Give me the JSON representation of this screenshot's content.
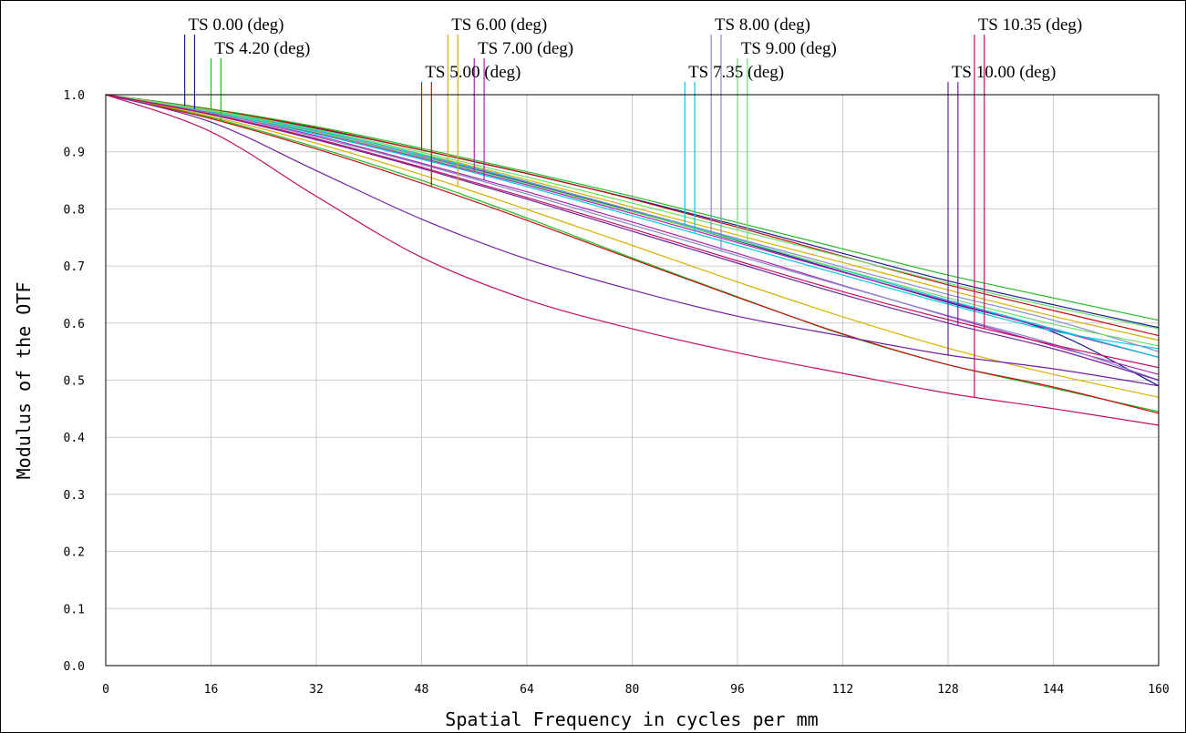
{
  "chart_data": {
    "type": "line",
    "title": "",
    "xlabel": "Spatial Frequency in cycles per mm",
    "ylabel": "Modulus of the OTF",
    "xlim": [
      0,
      160
    ],
    "ylim": [
      0,
      1
    ],
    "grid": true,
    "x_ticks": [
      "0",
      "16",
      "32",
      "48",
      "64",
      "80",
      "96",
      "112",
      "128",
      "144",
      "160"
    ],
    "y_ticks": [
      "0.0",
      "0.1",
      "0.2",
      "0.3",
      "0.4",
      "0.5",
      "0.6",
      "0.7",
      "0.8",
      "0.9",
      "1.0"
    ],
    "x": [
      0,
      16,
      32,
      48,
      64,
      80,
      96,
      112,
      128,
      144,
      160
    ],
    "legend": [
      {
        "label": "TS 0.00 (deg)",
        "color": "#1a1a8c",
        "marker_x": [
          12.0,
          13.5
        ]
      },
      {
        "label": "TS 4.20 (deg)",
        "color": "#22bb22",
        "marker_x": [
          16.0,
          17.5
        ]
      },
      {
        "label": "TS 5.00 (deg)",
        "color": "#c01010",
        "marker_x": [
          48.0,
          49.5
        ]
      },
      {
        "label": "TS 6.00 (deg)",
        "color": "#d8b000",
        "marker_x": [
          52.0,
          53.5
        ]
      },
      {
        "label": "TS 7.00 (deg)",
        "color": "#b020b0",
        "marker_x": [
          56.0,
          57.5
        ]
      },
      {
        "label": "TS 7.35 (deg)",
        "color": "#00c8e0",
        "marker_x": [
          88.0,
          89.5
        ]
      },
      {
        "label": "TS 8.00 (deg)",
        "color": "#8888cc",
        "marker_x": [
          92.0,
          93.5
        ]
      },
      {
        "label": "TS 9.00 (deg)",
        "color": "#66e066",
        "marker_x": [
          96.0,
          97.5
        ]
      },
      {
        "label": "TS 10.00 (deg)",
        "color": "#7020a0",
        "marker_x": [
          128.0,
          129.5
        ]
      },
      {
        "label": "TS 10.35 (deg)",
        "color": "#c01060",
        "marker_x": [
          132.0,
          133.5
        ]
      }
    ],
    "series": [
      {
        "color": "#1a1a8c",
        "values": [
          1.0,
          0.974,
          0.941,
          0.903,
          0.862,
          0.818,
          0.771,
          0.722,
          0.674,
          0.632,
          0.592
        ]
      },
      {
        "color": "#1a1a8c",
        "values": [
          1.0,
          0.97,
          0.933,
          0.892,
          0.846,
          0.796,
          0.744,
          0.69,
          0.636,
          0.584,
          0.49
        ]
      },
      {
        "color": "#22bb22",
        "values": [
          1.0,
          0.975,
          0.944,
          0.906,
          0.865,
          0.822,
          0.776,
          0.73,
          0.684,
          0.644,
          0.605
        ]
      },
      {
        "color": "#22bb22",
        "values": [
          1.0,
          0.96,
          0.908,
          0.85,
          0.784,
          0.714,
          0.646,
          0.58,
          0.527,
          0.486,
          0.445
        ]
      },
      {
        "color": "#c01010",
        "values": [
          1.0,
          0.974,
          0.942,
          0.903,
          0.862,
          0.817,
          0.768,
          0.717,
          0.667,
          0.622,
          0.578
        ]
      },
      {
        "color": "#c01010",
        "values": [
          1.0,
          0.958,
          0.905,
          0.845,
          0.78,
          0.712,
          0.645,
          0.581,
          0.527,
          0.488,
          0.442
        ]
      },
      {
        "color": "#d8b000",
        "values": [
          1.0,
          0.972,
          0.937,
          0.896,
          0.851,
          0.803,
          0.754,
          0.706,
          0.658,
          0.612,
          0.57
        ]
      },
      {
        "color": "#d8b000",
        "values": [
          1.0,
          0.962,
          0.915,
          0.86,
          0.799,
          0.736,
          0.672,
          0.611,
          0.556,
          0.51,
          0.47
        ]
      },
      {
        "color": "#b020b0",
        "values": [
          1.0,
          0.97,
          0.933,
          0.889,
          0.842,
          0.792,
          0.741,
          0.689,
          0.638,
          0.588,
          0.54
        ]
      },
      {
        "color": "#b020b0",
        "values": [
          1.0,
          0.968,
          0.928,
          0.88,
          0.83,
          0.777,
          0.722,
          0.666,
          0.612,
          0.56,
          0.51
        ]
      },
      {
        "color": "#00c8e0",
        "values": [
          1.0,
          0.972,
          0.937,
          0.895,
          0.848,
          0.798,
          0.746,
          0.693,
          0.64,
          0.59,
          0.54
        ]
      },
      {
        "color": "#00c8e0",
        "values": [
          1.0,
          0.97,
          0.931,
          0.887,
          0.839,
          0.788,
          0.736,
          0.684,
          0.633,
          0.586,
          0.555
        ]
      },
      {
        "color": "#8888cc",
        "values": [
          1.0,
          0.971,
          0.935,
          0.893,
          0.847,
          0.798,
          0.748,
          0.698,
          0.65,
          0.605,
          0.55
        ]
      },
      {
        "color": "#8888cc",
        "values": [
          1.0,
          0.968,
          0.926,
          0.878,
          0.826,
          0.772,
          0.718,
          0.665,
          0.613,
          0.563,
          0.5
        ]
      },
      {
        "color": "#66e066",
        "values": [
          1.0,
          0.973,
          0.939,
          0.899,
          0.856,
          0.81,
          0.763,
          0.716,
          0.67,
          0.628,
          0.59
        ]
      },
      {
        "color": "#66e066",
        "values": [
          1.0,
          0.971,
          0.934,
          0.891,
          0.844,
          0.795,
          0.745,
          0.694,
          0.644,
          0.598,
          0.56
        ]
      },
      {
        "color": "#7020a0",
        "values": [
          1.0,
          0.952,
          0.867,
          0.782,
          0.712,
          0.658,
          0.612,
          0.577,
          0.544,
          0.52,
          0.49
        ]
      },
      {
        "color": "#7020a0",
        "values": [
          1.0,
          0.965,
          0.921,
          0.871,
          0.817,
          0.761,
          0.705,
          0.65,
          0.6,
          0.555,
          0.5
        ]
      },
      {
        "color": "#c01060",
        "values": [
          1.0,
          0.935,
          0.822,
          0.715,
          0.641,
          0.59,
          0.548,
          0.512,
          0.477,
          0.45,
          0.421
        ]
      },
      {
        "color": "#c01060",
        "values": [
          1.0,
          0.966,
          0.923,
          0.873,
          0.82,
          0.765,
          0.709,
          0.655,
          0.606,
          0.562,
          0.522
        ]
      }
    ]
  }
}
